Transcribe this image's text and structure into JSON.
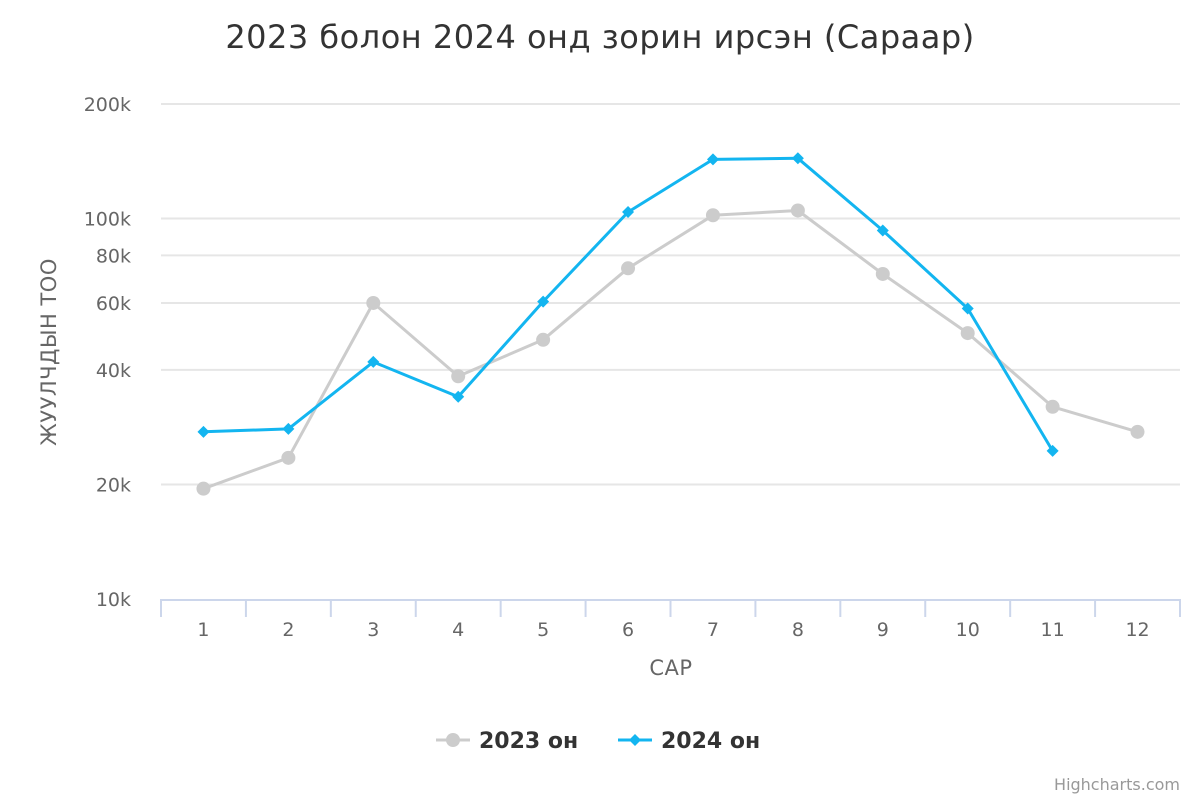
{
  "chart_data": {
    "type": "line",
    "title": "2023 болон 2024 онд зорин ирсэн (Сараар)",
    "xlabel": "САР",
    "ylabel": "ЖУУЛЧДЫН ТОО",
    "y_scale": "log",
    "ylim": [
      10000,
      200000
    ],
    "y_ticks": [
      10000,
      20000,
      40000,
      60000,
      80000,
      100000,
      200000
    ],
    "y_tick_labels": [
      "10k",
      "20k",
      "40k",
      "60k",
      "80k",
      "100k",
      "200k"
    ],
    "categories": [
      "1",
      "2",
      "3",
      "4",
      "5",
      "6",
      "7",
      "8",
      "9",
      "10",
      "11",
      "12"
    ],
    "grid": true,
    "legend_position": "bottom-center",
    "series": [
      {
        "name": "2023 он",
        "color": "#cccccc",
        "marker": "circle",
        "values": [
          19500,
          23500,
          60000,
          38500,
          48000,
          74000,
          102000,
          105000,
          71500,
          50000,
          32000,
          27500
        ]
      },
      {
        "name": "2024 он",
        "color": "#13b5f0",
        "marker": "diamond",
        "values": [
          27500,
          28000,
          42000,
          34000,
          60500,
          104000,
          143000,
          144000,
          93000,
          58000,
          24500,
          null
        ]
      }
    ]
  },
  "credits": "Highcharts.com"
}
